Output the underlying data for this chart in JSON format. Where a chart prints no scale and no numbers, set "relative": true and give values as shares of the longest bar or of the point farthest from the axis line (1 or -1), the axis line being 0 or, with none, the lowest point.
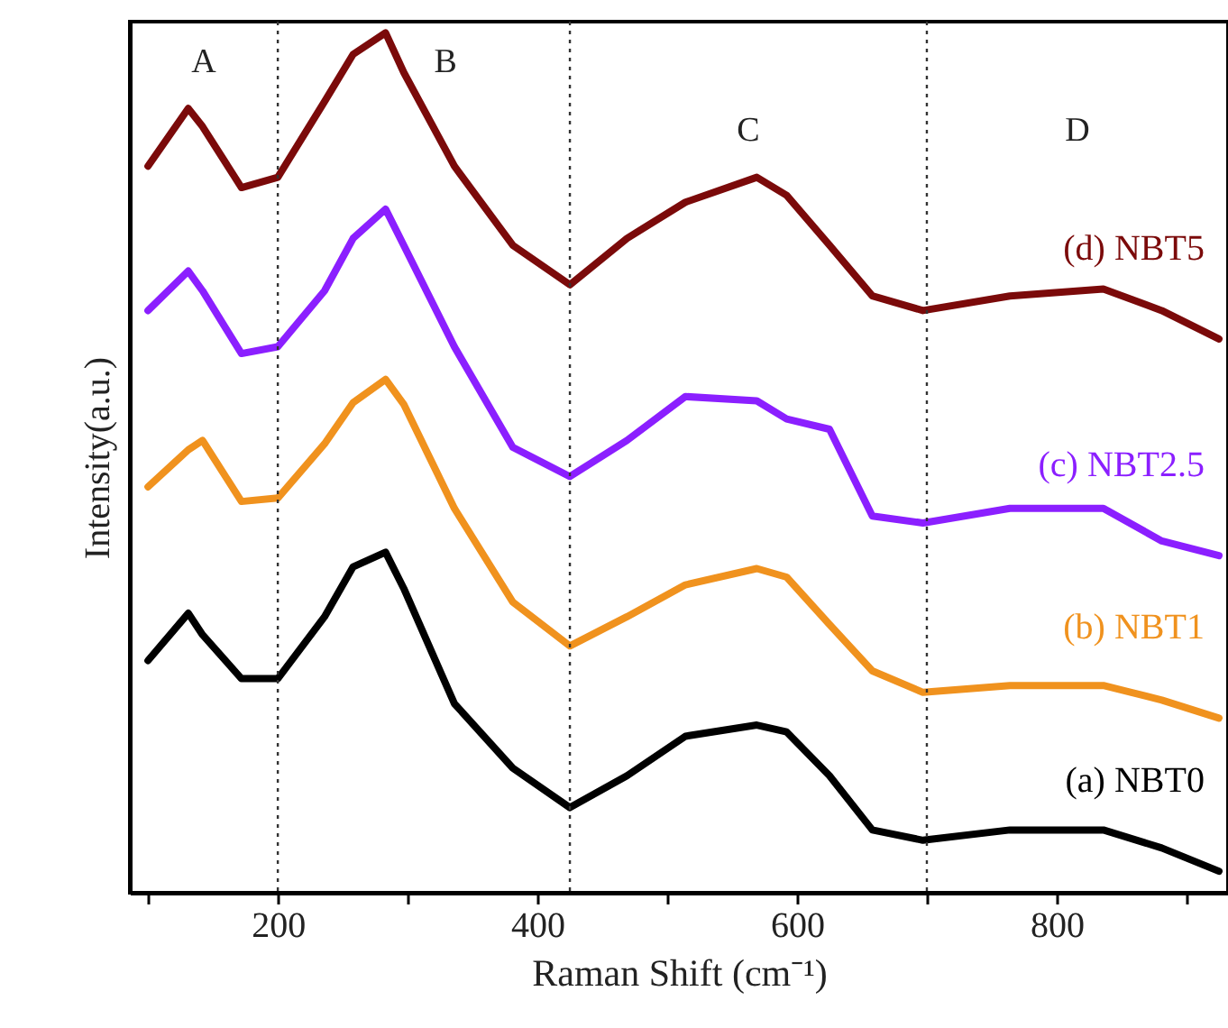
{
  "chart_data": {
    "type": "line",
    "relative": true,
    "xlabel": "Raman Shift (cm⁻¹)",
    "ylabel": "Intensity(a.u.)",
    "xlim": [
      86,
      932
    ],
    "xticks": [
      {
        "value": 100,
        "label": null
      },
      200,
      {
        "value": 300,
        "label": null
      },
      400,
      {
        "value": 500,
        "label": null
      },
      600,
      {
        "value": 700,
        "label": null
      },
      800,
      {
        "value": 900,
        "label": null
      }
    ],
    "grid": false,
    "marker": "none",
    "line_style": "solid",
    "x": [
      100,
      131,
      142,
      172,
      200,
      236,
      258,
      283,
      297,
      336,
      381,
      425,
      469,
      514,
      569,
      592,
      625,
      658,
      697,
      764,
      836,
      881,
      925
    ],
    "series": [
      {
        "name": "(d) NBT5",
        "color": "#7b0a0a",
        "values": [
          0.845,
          0.912,
          0.891,
          0.82,
          0.832,
          0.92,
          0.975,
          1.0,
          0.954,
          0.845,
          0.753,
          0.707,
          0.761,
          0.803,
          0.832,
          0.811,
          0.753,
          0.694,
          0.677,
          0.694,
          0.702,
          0.677,
          0.644
        ]
      },
      {
        "name": "(c) NBT2.5",
        "color": "#8b1fff",
        "values": [
          0.677,
          0.723,
          0.7,
          0.627,
          0.635,
          0.7,
          0.761,
          0.795,
          0.753,
          0.635,
          0.518,
          0.484,
          0.526,
          0.577,
          0.572,
          0.551,
          0.539,
          0.438,
          0.43,
          0.447,
          0.447,
          0.409,
          0.392
        ]
      },
      {
        "name": "(b) NBT1",
        "color": "#f0921e",
        "values": [
          0.472,
          0.515,
          0.526,
          0.455,
          0.459,
          0.522,
          0.57,
          0.597,
          0.568,
          0.447,
          0.338,
          0.287,
          0.321,
          0.358,
          0.377,
          0.367,
          0.312,
          0.258,
          0.233,
          0.241,
          0.241,
          0.224,
          0.203
        ]
      },
      {
        "name": "(a) NBT0",
        "color": "#000000",
        "values": [
          0.27,
          0.325,
          0.3,
          0.249,
          0.249,
          0.321,
          0.379,
          0.396,
          0.354,
          0.22,
          0.145,
          0.099,
          0.136,
          0.182,
          0.195,
          0.187,
          0.136,
          0.073,
          0.061,
          0.073,
          0.073,
          0.052,
          0.025
        ]
      }
    ],
    "ref_lines": [
      {
        "axis": "x",
        "value": 200,
        "label": null,
        "line_style": "dotted"
      },
      {
        "axis": "x",
        "value": 425,
        "label": null,
        "line_style": "dotted"
      },
      {
        "axis": "x",
        "value": 700,
        "label": null,
        "line_style": "dotted"
      }
    ],
    "annotations": [
      "A",
      "B",
      "C",
      "D"
    ]
  }
}
